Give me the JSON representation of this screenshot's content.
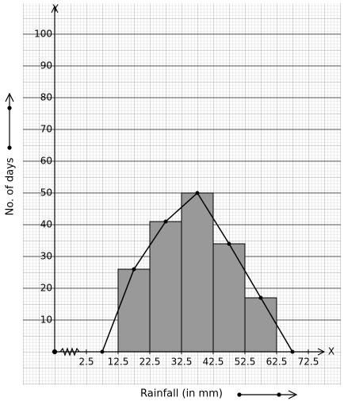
{
  "chart_data": {
    "type": "histogram",
    "x_label": "Rainfall (in mm)",
    "y_label": "No. of days",
    "x_axis_name": "X",
    "y_axis_name": "Y",
    "bins": [
      12.5,
      22.5,
      32.5,
      42.5,
      52.5,
      62.5
    ],
    "counts": [
      26,
      41,
      50,
      34,
      17
    ],
    "color": "#999999",
    "polygon": {
      "x": [
        7.5,
        17.5,
        27.5,
        37.5,
        47.5,
        57.5,
        67.5
      ],
      "values": [
        0,
        26,
        41,
        50,
        34,
        17,
        0
      ],
      "color": "#000000"
    },
    "xlim": [
      -7.5,
      77.5
    ],
    "ylim": [
      0,
      107.5
    ],
    "xticks": [
      2.5,
      12.5,
      22.5,
      32.5,
      42.5,
      52.5,
      62.5,
      72.5
    ],
    "yticks": [
      10,
      20,
      30,
      40,
      50,
      60,
      70,
      80,
      90,
      100
    ],
    "grid": true
  }
}
